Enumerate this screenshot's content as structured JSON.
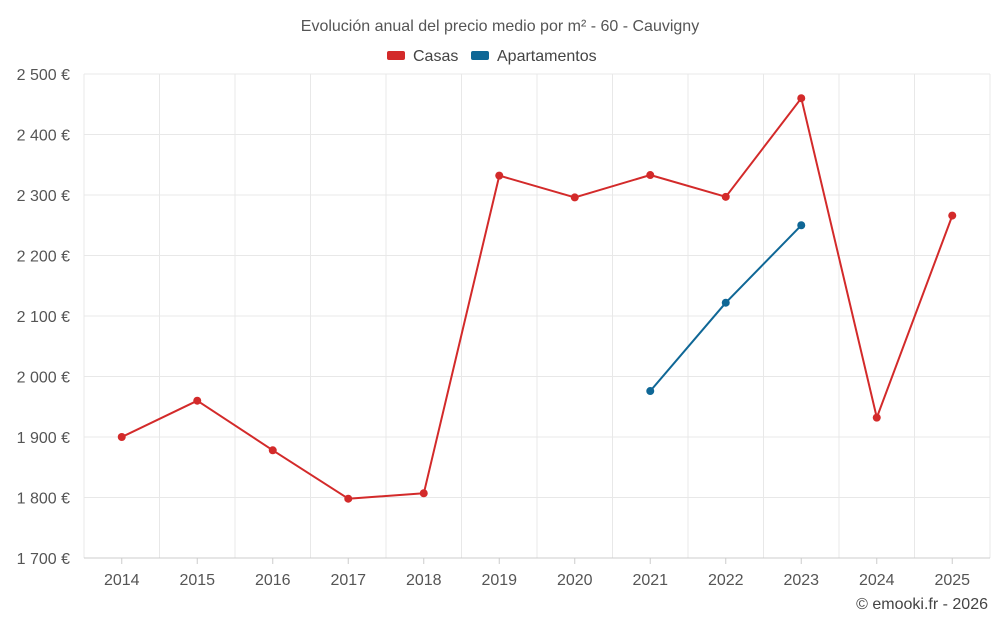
{
  "chart_data": {
    "type": "line",
    "title": "Evolución anual del precio medio por m² - 60 - Cauvigny",
    "xlabel": "",
    "ylabel": "",
    "categories": [
      "2014",
      "2015",
      "2016",
      "2017",
      "2018",
      "2019",
      "2020",
      "2021",
      "2022",
      "2023",
      "2024",
      "2025"
    ],
    "y_ticks": [
      "1 700 €",
      "1 800 €",
      "1 900 €",
      "2 000 €",
      "2 100 €",
      "2 200 €",
      "2 300 €",
      "2 400 €",
      "2 500 €"
    ],
    "ylim": [
      1700,
      2500
    ],
    "grid": true,
    "legend_position": "top-center",
    "series": [
      {
        "name": "Casas",
        "color": "#d32a2a",
        "values": [
          1900,
          1960,
          1878,
          1798,
          1807,
          2332,
          2296,
          2333,
          2297,
          2460,
          1932,
          2266
        ]
      },
      {
        "name": "Apartamentos",
        "color": "#0f6796",
        "values": [
          null,
          null,
          null,
          null,
          null,
          null,
          null,
          1976,
          2122,
          2250,
          null,
          null
        ]
      }
    ]
  },
  "footer": {
    "credit": "© emooki.fr - 2026"
  }
}
